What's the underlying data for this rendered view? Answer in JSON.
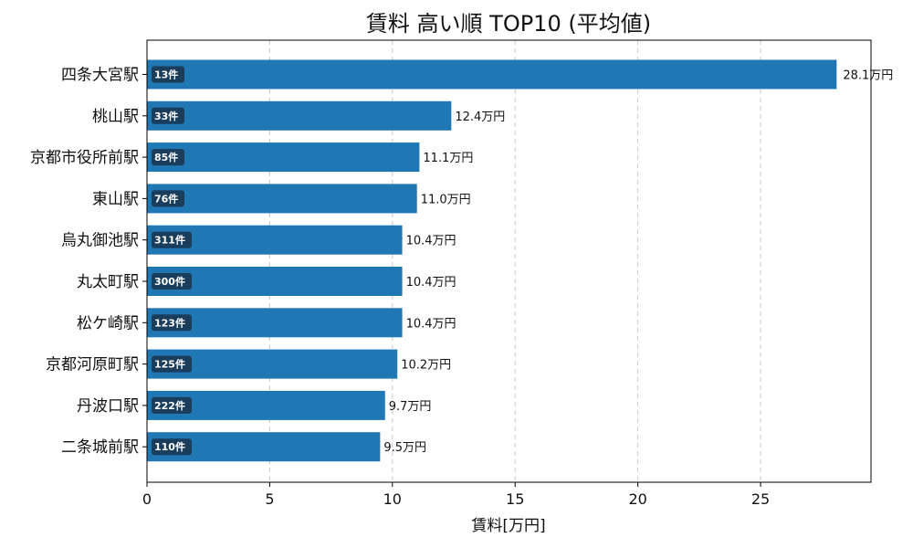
{
  "chart_data": {
    "type": "bar",
    "orientation": "horizontal",
    "title": "賃料 高い順 TOP10 (平均値)",
    "xlabel": "賃料[万円]",
    "ylabel": "",
    "xlim": [
      0,
      29.5
    ],
    "xticks": [
      0,
      5,
      10,
      15,
      20,
      25
    ],
    "grid": "x-dashed",
    "bar_color": "#1f77b4",
    "badge_color": "#1a3d5c",
    "categories": [
      "四条大宮駅",
      "桃山駅",
      "京都市役所前駅",
      "東山駅",
      "烏丸御池駅",
      "丸太町駅",
      "松ケ崎駅",
      "京都河原町駅",
      "丹波口駅",
      "二条城前駅"
    ],
    "values": [
      28.1,
      12.4,
      11.1,
      11.0,
      10.4,
      10.4,
      10.4,
      10.2,
      9.7,
      9.5
    ],
    "value_labels": [
      "28.1万円",
      "12.4万円",
      "11.1万円",
      "11.0万円",
      "10.4万円",
      "10.4万円",
      "10.4万円",
      "10.2万円",
      "9.7万円",
      "9.5万円"
    ],
    "counts": [
      "13件",
      "33件",
      "85件",
      "76件",
      "311件",
      "300件",
      "123件",
      "125件",
      "222件",
      "110件"
    ]
  }
}
